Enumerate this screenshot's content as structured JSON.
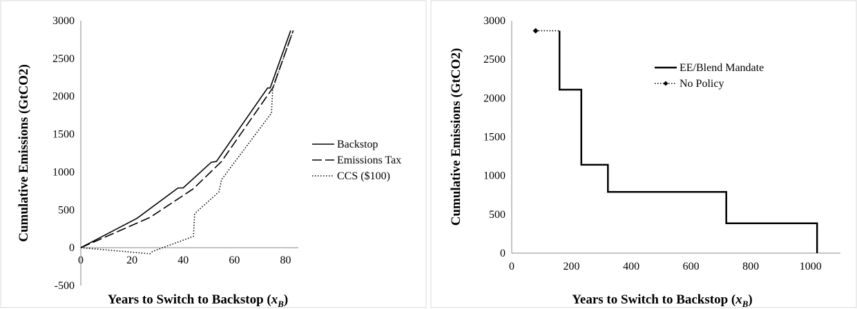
{
  "chart_data": [
    {
      "type": "line",
      "title": "",
      "xlabel": "Years to Switch to Backstop (x_B)",
      "xlabel_main": "Years to Switch to Backstop (",
      "xlabel_var": "x",
      "xlabel_sub": "B",
      "xlabel_end": ")",
      "ylabel": "Cumulative Emissions (GtCO2)",
      "xlim": [
        0,
        85
      ],
      "ylim": [
        -500,
        3000
      ],
      "xticks": [
        "0",
        "20",
        "40",
        "60",
        "80"
      ],
      "yticks": [
        "-500",
        "0",
        "500",
        "1000",
        "1500",
        "2000",
        "2500",
        "3000"
      ],
      "grid": false,
      "legend_position": "right",
      "series": [
        {
          "name": "Backstop",
          "style": "solid",
          "x": [
            0,
            22,
            38,
            40,
            51,
            53,
            73,
            74,
            82
          ],
          "y": [
            0,
            390,
            790,
            790,
            1130,
            1140,
            2110,
            2110,
            2870
          ]
        },
        {
          "name": "Emissions Tax",
          "style": "dashed",
          "x": [
            0,
            27,
            44,
            55,
            75,
            83
          ],
          "y": [
            0,
            400,
            780,
            1140,
            2110,
            2870
          ]
        },
        {
          "name": "CCS ($100)",
          "style": "dotted",
          "x": [
            0,
            27,
            28,
            44,
            44.5,
            54,
            55,
            74.5,
            75,
            83
          ],
          "y": [
            0,
            -80,
            -50,
            150,
            450,
            740,
            900,
            1780,
            2100,
            2870
          ]
        }
      ]
    },
    {
      "type": "line",
      "title": "",
      "xlabel": "Years to Switch to Backstop (x_B)",
      "xlabel_main": "Years to Switch to Backstop (",
      "xlabel_var": "x",
      "xlabel_sub": "B",
      "xlabel_end": ")",
      "ylabel": "Cumulative Emissions (GtCO2)",
      "xlim": [
        0,
        1100
      ],
      "ylim": [
        0,
        3000
      ],
      "xticks": [
        "0",
        "200",
        "400",
        "600",
        "800",
        "1000"
      ],
      "yticks": [
        "0",
        "500",
        "1000",
        "1500",
        "2000",
        "2500",
        "3000"
      ],
      "grid": false,
      "legend_position": "top-right",
      "series": [
        {
          "name": "EE/Blend Mandate",
          "style": "solid-step",
          "x": [
            160,
            160,
            233,
            233,
            322,
            322,
            718,
            718,
            1022,
            1022
          ],
          "y": [
            2870,
            2110,
            2110,
            1140,
            1140,
            790,
            790,
            385,
            385,
            0
          ]
        },
        {
          "name": "No Policy",
          "style": "dotted-diamond",
          "x": [
            80,
            160
          ],
          "y": [
            2870,
            2870
          ]
        }
      ]
    }
  ]
}
